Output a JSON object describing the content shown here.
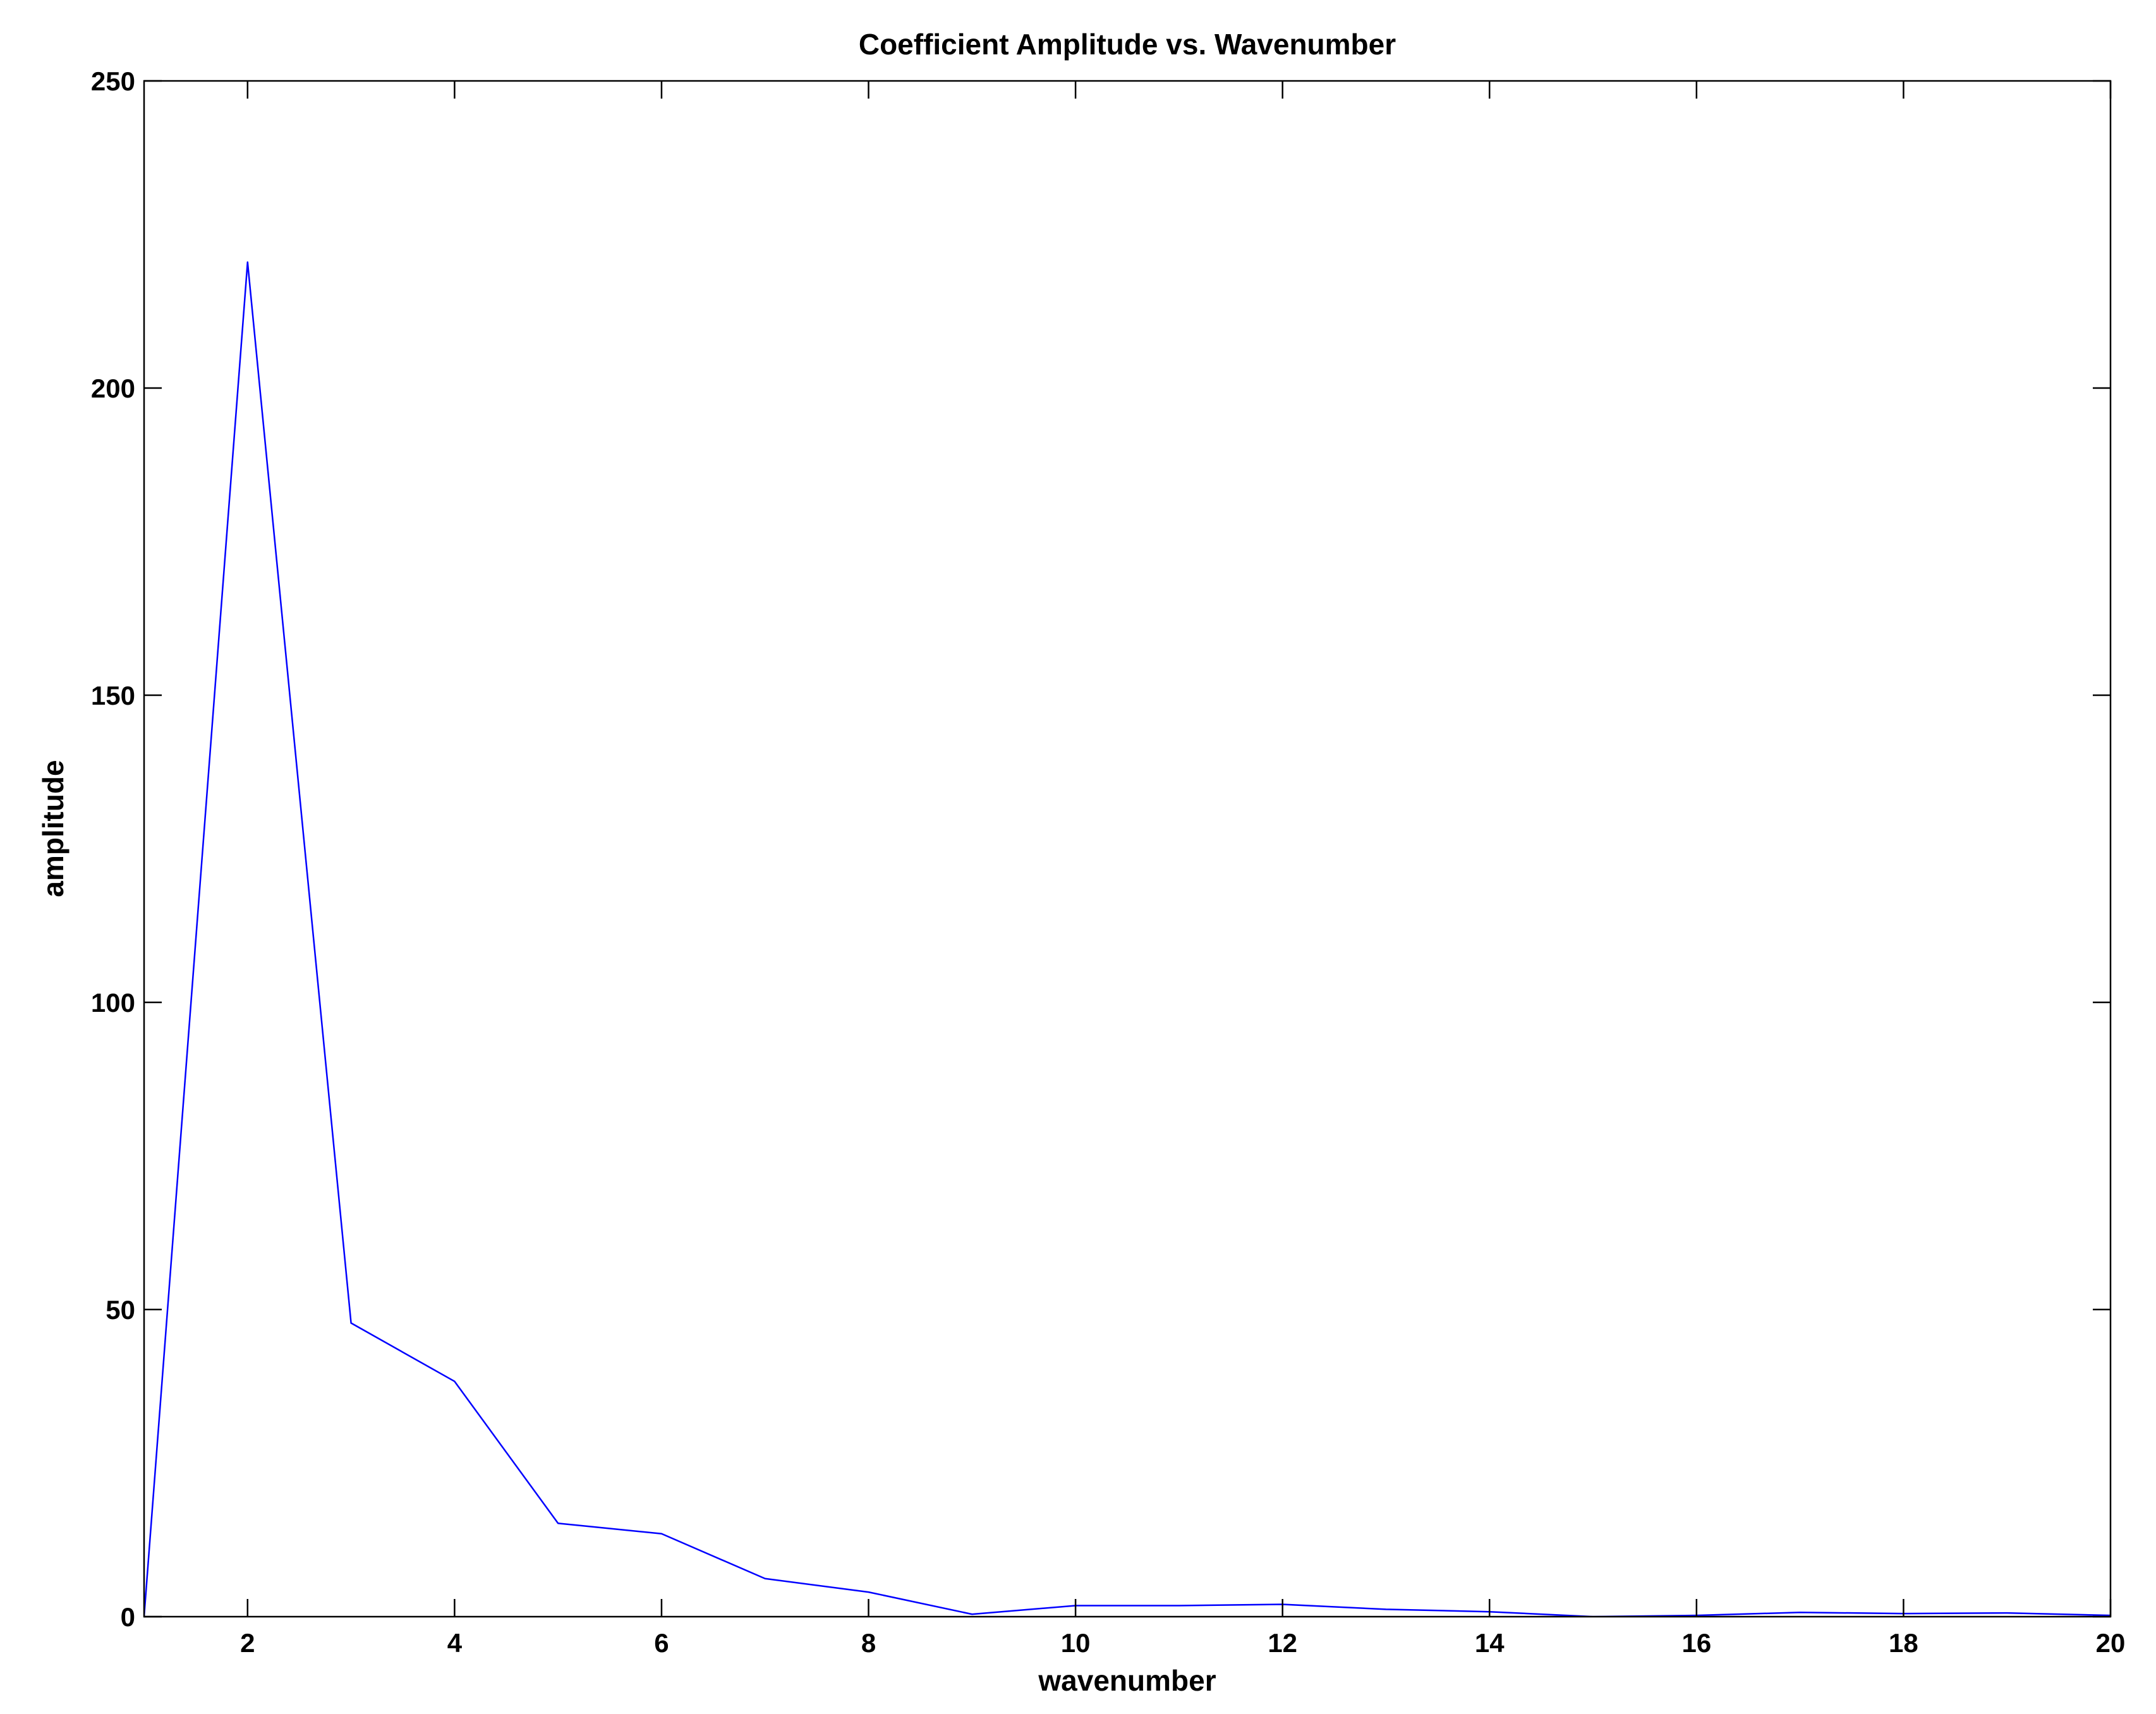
{
  "chart_data": {
    "type": "line",
    "title": "Coefficient Amplitude vs. Wavenumber",
    "xlabel": "wavenumber",
    "ylabel": "amplitude",
    "xlim": [
      1,
      20
    ],
    "ylim": [
      0,
      250
    ],
    "xticks": [
      2,
      4,
      6,
      8,
      10,
      12,
      14,
      16,
      18,
      20
    ],
    "yticks": [
      0,
      50,
      100,
      150,
      200,
      250
    ],
    "grid": false,
    "line_color": "#0000ff",
    "axis_color": "#000000",
    "series": [
      {
        "x": [
          1,
          2,
          3,
          4,
          5,
          6,
          7,
          8,
          9,
          10,
          11,
          12,
          13,
          14,
          15,
          16,
          17,
          18,
          19,
          20
        ],
        "values": [
          0,
          220.5,
          47.8,
          38.3,
          15.2,
          13.5,
          6.2,
          4.0,
          0.4,
          1.8,
          1.8,
          2.0,
          1.2,
          0.8,
          0,
          0.2,
          0.7,
          0.5,
          0.6,
          0.2
        ]
      }
    ]
  }
}
